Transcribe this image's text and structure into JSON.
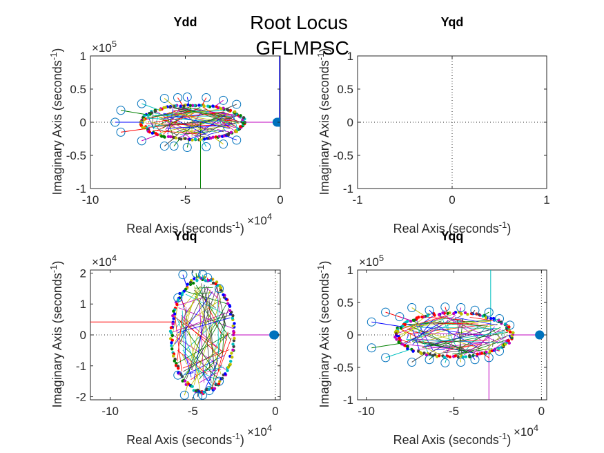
{
  "figure": {
    "title_line1": "Root Locus",
    "title_line2": "GFLMPSC"
  },
  "axis_label_parts": {
    "x_text": "Real Axis (seconds",
    "x_sup": "-1",
    "x_close": ")",
    "y_text": "Imaginary Axis (seconds",
    "y_sup": "-1",
    "y_close": ")"
  },
  "colors": {
    "series": [
      "#0000ff",
      "#008000",
      "#ff0000",
      "#00bfbf",
      "#bf00bf",
      "#bfbf00",
      "#404040"
    ],
    "marker": "#0072bd",
    "axis": "#262626",
    "grid": "#262626"
  },
  "chart_data": [
    {
      "id": "ydd",
      "type": "scatter",
      "title": "Ydd",
      "xlim": [
        -10,
        0
      ],
      "ylim": [
        -1,
        1
      ],
      "xticks": [
        "-10",
        "-5",
        "0"
      ],
      "yticks": [
        "1",
        "0.5",
        "0",
        "-0.5",
        "-1"
      ],
      "x_exponent": "4",
      "y_exponent": "5",
      "locus": {
        "center_x": -4.6,
        "center_y": 0,
        "semi_x": 2.7,
        "semi_y": 0.26
      },
      "poles_x": [
        -0.05,
        -0.02,
        -0.06
      ],
      "zeros": [
        [
          -8.7,
          0.0
        ],
        [
          -8.4,
          0.18
        ],
        [
          -8.4,
          -0.15
        ],
        [
          -7.3,
          0.28
        ],
        [
          -7.3,
          -0.28
        ],
        [
          -6.1,
          0.36
        ],
        [
          -6.1,
          -0.36
        ],
        [
          -4.9,
          0.38
        ],
        [
          -4.9,
          -0.38
        ],
        [
          -3.9,
          0.37
        ],
        [
          -3.9,
          -0.37
        ],
        [
          -3.0,
          0.33
        ],
        [
          -3.0,
          -0.33
        ],
        [
          -2.3,
          0.27
        ],
        [
          -2.3,
          -0.27
        ],
        [
          -5.6,
          -0.36
        ],
        [
          -5.4,
          0.37
        ]
      ],
      "branches_off": [
        [
          -0.05,
          0.0,
          -0.05,
          1.0
        ],
        [
          -4.2,
          0.0,
          -4.2,
          -1.0
        ]
      ]
    },
    {
      "id": "yqd",
      "type": "scatter",
      "title": "Yqd",
      "xlim": [
        -1,
        1
      ],
      "ylim": [
        -1,
        1
      ],
      "xticks": [
        "-1",
        "0",
        "1"
      ],
      "yticks": [
        "1",
        "0.5",
        "0",
        "-0.5",
        "-1"
      ],
      "x_exponent": "",
      "y_exponent": "",
      "locus": null,
      "poles_x": [],
      "zeros": [],
      "branches_off": []
    },
    {
      "id": "ydq",
      "type": "scatter",
      "title": "Ydq",
      "xlim": [
        -11.2,
        0.3
      ],
      "ylim": [
        -2.1,
        2.1
      ],
      "xticks": [
        "-10",
        "-5",
        "0"
      ],
      "yticks": [
        "2",
        "1",
        "0",
        "-1",
        "-2"
      ],
      "x_exponent": "4",
      "y_exponent": "4",
      "locus": {
        "center_x": -4.4,
        "center_y": 0,
        "semi_x": 1.9,
        "semi_y": 1.85
      },
      "poles_x": [
        -0.05,
        -0.03
      ],
      "zeros": [
        [
          -5.6,
          1.95
        ],
        [
          -4.8,
          2.0
        ],
        [
          -4.1,
          1.85
        ],
        [
          -5.9,
          1.2
        ],
        [
          -5.9,
          -1.3
        ],
        [
          -5.5,
          -1.95
        ],
        [
          -4.7,
          -2.0
        ],
        [
          -4.0,
          -1.8
        ],
        [
          -3.4,
          1.5
        ],
        [
          -3.4,
          -1.5
        ],
        [
          -4.4,
          1.95
        ],
        [
          -4.4,
          -1.95
        ]
      ],
      "branches_off": [
        [
          -11.2,
          0.42,
          -6.2,
          0.42
        ],
        [
          -2.4,
          0.0,
          -0.05,
          0.0
        ]
      ]
    },
    {
      "id": "yqq",
      "type": "scatter",
      "title": "Yqq",
      "xlim": [
        -10.5,
        0.3
      ],
      "ylim": [
        -1,
        1
      ],
      "xticks": [
        "-10",
        "-5",
        "0"
      ],
      "yticks": [
        "1",
        "0.5",
        "0",
        "-0.5",
        "-1"
      ],
      "x_exponent": "4",
      "y_exponent": "5",
      "locus": {
        "center_x": -5.0,
        "center_y": 0,
        "semi_x": 3.3,
        "semi_y": 0.34
      },
      "poles_x": [
        -0.1,
        -0.05
      ],
      "zeros": [
        [
          -9.7,
          0.2
        ],
        [
          -9.7,
          -0.2
        ],
        [
          -8.9,
          0.35
        ],
        [
          -8.9,
          -0.35
        ],
        [
          -8.1,
          0.28
        ],
        [
          -7.4,
          0.42
        ],
        [
          -7.4,
          -0.42
        ],
        [
          -6.4,
          0.38
        ],
        [
          -6.4,
          -0.38
        ],
        [
          -5.5,
          0.43
        ],
        [
          -5.5,
          -0.43
        ],
        [
          -4.6,
          0.42
        ],
        [
          -4.6,
          -0.42
        ],
        [
          -3.8,
          0.38
        ],
        [
          -3.8,
          -0.38
        ],
        [
          -3.0,
          0.35
        ],
        [
          -3.0,
          -0.35
        ],
        [
          -2.4,
          0.25
        ],
        [
          -2.4,
          -0.25
        ],
        [
          -1.8,
          0.15
        ]
      ],
      "branches_off": [
        [
          -2.9,
          0.0,
          -2.9,
          1.0
        ],
        [
          -3.0,
          0.0,
          -3.0,
          -1.0
        ]
      ]
    }
  ]
}
